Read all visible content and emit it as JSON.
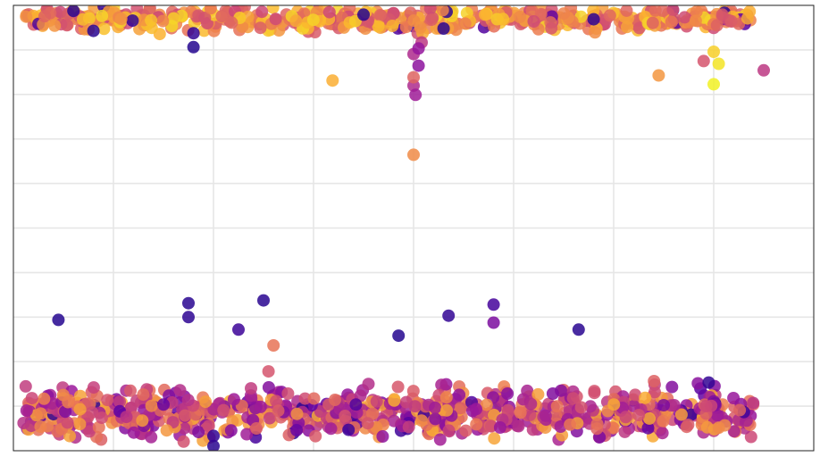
{
  "chart_data": {
    "type": "scatter",
    "title": "",
    "xlabel": "",
    "ylabel": "",
    "xlim": [
      -0.5,
      7.5
    ],
    "ylim": [
      0,
      9.6
    ],
    "grid": true,
    "x_ticks": [
      0.5,
      1.5,
      2.5,
      3.5,
      4.5,
      5.5,
      6.5
    ],
    "y_ticks": [
      0.96,
      1.92,
      2.88,
      3.84,
      4.8,
      5.76,
      6.72,
      7.68,
      8.64
    ],
    "colormap": "plasma",
    "colormap_stops": [
      "#0d0887",
      "#5b02a3",
      "#9a179b",
      "#cb4678",
      "#eb7852",
      "#fbb32f",
      "#f0f921"
    ],
    "marker_opacity": 0.85,
    "clusters": [
      {
        "name": "",
        "x_range": [
          -0.4,
          6.9
        ],
        "y_center": 9.3,
        "y_spread": 0.25,
        "count": 560,
        "color_range": [
          0.5,
          0.92
        ]
      },
      {
        "name": "",
        "x_range": [
          -0.4,
          6.9
        ],
        "y_center": 0.8,
        "y_spread": 0.55,
        "count": 780,
        "color_range": [
          0.25,
          0.82
        ]
      }
    ],
    "outliers": [
      {
        "x": -0.05,
        "y": 2.82,
        "c": 0.05
      },
      {
        "x": 1.25,
        "y": 3.18,
        "c": 0.06
      },
      {
        "x": 1.25,
        "y": 2.88,
        "c": 0.07
      },
      {
        "x": 2.0,
        "y": 3.24,
        "c": 0.06
      },
      {
        "x": 1.75,
        "y": 2.61,
        "c": 0.1
      },
      {
        "x": 3.35,
        "y": 2.48,
        "c": 0.05
      },
      {
        "x": 3.85,
        "y": 2.91,
        "c": 0.08
      },
      {
        "x": 4.3,
        "y": 3.15,
        "c": 0.12
      },
      {
        "x": 4.3,
        "y": 2.76,
        "c": 0.25
      },
      {
        "x": 5.15,
        "y": 2.61,
        "c": 0.06
      },
      {
        "x": 2.1,
        "y": 2.27,
        "c": 0.65
      },
      {
        "x": 2.05,
        "y": 1.71,
        "c": 0.55
      },
      {
        "x": 3.5,
        "y": 6.38,
        "c": 0.72
      },
      {
        "x": 3.5,
        "y": 7.87,
        "c": 0.4
      },
      {
        "x": 3.52,
        "y": 7.67,
        "c": 0.35
      },
      {
        "x": 3.5,
        "y": 8.05,
        "c": 0.6
      },
      {
        "x": 3.55,
        "y": 8.3,
        "c": 0.3
      },
      {
        "x": 3.5,
        "y": 8.55,
        "c": 0.4
      },
      {
        "x": 3.58,
        "y": 8.8,
        "c": 0.45
      },
      {
        "x": 3.55,
        "y": 8.67,
        "c": 0.32
      },
      {
        "x": 6.5,
        "y": 7.9,
        "c": 0.98
      },
      {
        "x": 6.55,
        "y": 8.34,
        "c": 0.95
      },
      {
        "x": 6.5,
        "y": 8.6,
        "c": 0.9
      },
      {
        "x": 2.69,
        "y": 7.98,
        "c": 0.82
      },
      {
        "x": 5.95,
        "y": 8.09,
        "c": 0.75
      },
      {
        "x": 7.0,
        "y": 8.2,
        "c": 0.45
      },
      {
        "x": 6.4,
        "y": 8.4,
        "c": 0.55
      },
      {
        "x": 1.3,
        "y": 8.7,
        "c": 0.05
      },
      {
        "x": 0.3,
        "y": 9.05,
        "c": 0.06
      },
      {
        "x": 1.3,
        "y": 9.0,
        "c": 0.08
      },
      {
        "x": 3.0,
        "y": 9.4,
        "c": 0.05
      },
      {
        "x": 5.3,
        "y": 9.3,
        "c": 0.07
      },
      {
        "x": 3.8,
        "y": 9.1,
        "c": 0.06
      },
      {
        "x": 0.1,
        "y": 9.48,
        "c": 0.06
      },
      {
        "x": 1.5,
        "y": 0.1,
        "c": 0.06
      },
      {
        "x": 1.5,
        "y": 0.32,
        "c": 0.08
      },
      {
        "x": 2.85,
        "y": 0.45,
        "c": 0.1
      },
      {
        "x": 6.45,
        "y": 1.47,
        "c": 0.08
      }
    ]
  }
}
